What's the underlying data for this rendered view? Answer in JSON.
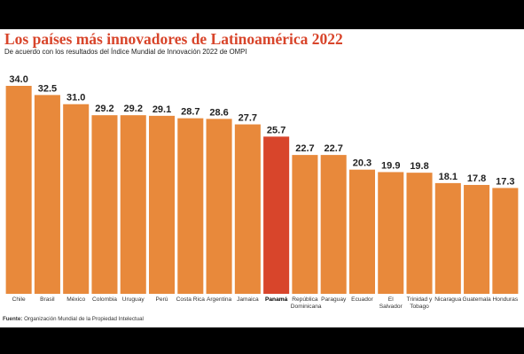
{
  "chart_data": {
    "type": "bar",
    "title": "Los países más innovadores de Latinoamérica 2022",
    "subtitle": "De acuerdo con los resultados del Índice Mundial de Innovación 2022 de OMPI",
    "source_label": "Fuente:",
    "source": "Organización Mundial de la Propiedad Intelectual",
    "categories": [
      "Chile",
      "Brasil",
      "México",
      "Colombia",
      "Uruguay",
      "Perú",
      "Costa Rica",
      "Argentina",
      "Jamaica",
      "Panamá",
      "República Dominicana",
      "Paraguay",
      "Ecuador",
      "El Salvador",
      "Trinidad y Tobago",
      "Nicaragua",
      "Guatemala",
      "Honduras"
    ],
    "values": [
      34.0,
      32.5,
      31.0,
      29.2,
      29.2,
      29.1,
      28.7,
      28.6,
      27.7,
      25.7,
      22.7,
      22.7,
      20.3,
      19.9,
      19.8,
      18.1,
      17.8,
      17.3
    ],
    "value_labels": [
      "34.0",
      "32.5",
      "31.0",
      "29.2",
      "29.2",
      "29.1",
      "28.7",
      "28.6",
      "27.7",
      "25.7",
      "22.7",
      "22.7",
      "20.3",
      "19.9",
      "19.8",
      "18.1",
      "17.8",
      "17.3"
    ],
    "color": "#e8893b",
    "highlight": "Panamá",
    "highlight_color": "#d8452b"
  }
}
